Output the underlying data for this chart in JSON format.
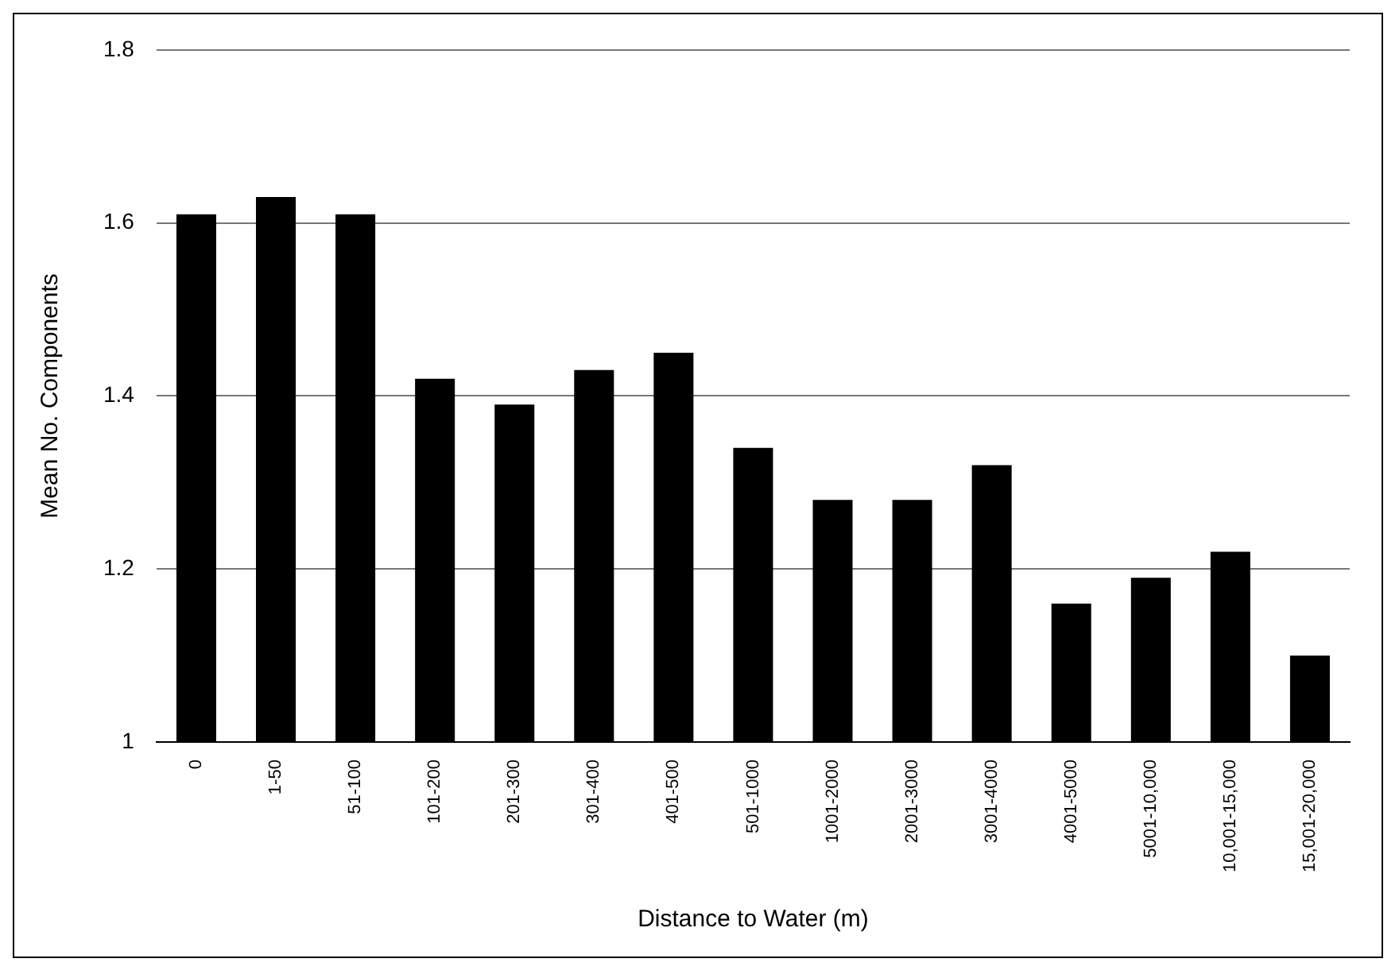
{
  "chart_data": {
    "type": "bar",
    "xlabel": "Distance to Water (m)",
    "ylabel": "Mean No. Components",
    "categories": [
      "0",
      "1-50",
      "51-100",
      "101-200",
      "201-300",
      "301-400",
      "401-500",
      "501-1000",
      "1001-2000",
      "2001-3000",
      "3001-4000",
      "4001-5000",
      "5001-10,000",
      "10,001-15,000",
      "15,001-20,000"
    ],
    "values": [
      1.61,
      1.63,
      1.61,
      1.42,
      1.39,
      1.43,
      1.45,
      1.34,
      1.28,
      1.28,
      1.32,
      1.16,
      1.19,
      1.22,
      1.1
    ],
    "color": "#000000",
    "ylim": [
      1,
      1.8
    ],
    "yticks": [
      1,
      1.2,
      1.4,
      1.6,
      1.8
    ],
    "grid": "y",
    "legend": false
  }
}
